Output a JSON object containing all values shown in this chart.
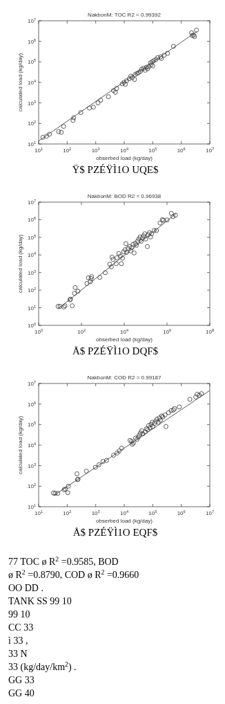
{
  "chart_data": [
    {
      "type": "scatter",
      "title": "NakbonM: TOC R2 = 0.99392",
      "xlabel": "obserbed load (kg/day)",
      "ylabel": "calculated load (kg/day)",
      "annotations": [
        "Ÿ$ PZÉŸÌ1O UQE$"
      ],
      "log": "xy",
      "marker": "circle",
      "xlim": [
        10,
        10000000
      ],
      "ylim": [
        10,
        10000000
      ],
      "xticks": [
        {
          "value": 10,
          "label": "10$^{1}$"
        },
        {
          "value": 100,
          "label": "10$^{2}$"
        },
        {
          "value": 1000,
          "label": "10$^{3}$"
        },
        {
          "value": 10000,
          "label": "10$^{4}$"
        },
        {
          "value": 100000,
          "label": "10$^{5}$"
        },
        {
          "value": 1000000,
          "label": "10$^{6}$"
        },
        {
          "value": 10000000,
          "label": "10$^{7}$"
        }
      ],
      "yticks": [
        {
          "value": 10,
          "label": "10$^{1}$"
        },
        {
          "value": 100,
          "label": "10$^{2}$"
        },
        {
          "value": 1000,
          "label": "10$^{3}$"
        },
        {
          "value": 10000,
          "label": "10$^{4}$"
        },
        {
          "value": 100000,
          "label": "10$^{5}$"
        },
        {
          "value": 1000000,
          "label": "10$^{6}$"
        },
        {
          "value": 10000000,
          "label": "10$^{7}$"
        }
      ],
      "series": [
        {
          "type": "scatter",
          "color": "#333333",
          "x": [
            14,
            19,
            24,
            50,
            62,
            75,
            160,
            170,
            300,
            600,
            830,
            1200,
            1500,
            2800,
            4200,
            4900,
            5400,
            8500,
            9800,
            11000,
            12000,
            15000,
            17000,
            19000,
            23000,
            24000,
            28000,
            32000,
            37000,
            41000,
            48000,
            54000,
            60000,
            66000,
            72000,
            83000,
            87000,
            96000,
            100000,
            110000,
            130000,
            150000,
            190000,
            200000,
            250000,
            330000,
            530000,
            2300000,
            2700000,
            2900000,
            3400000,
            2400000
          ],
          "values": [
            21,
            24,
            30,
            40,
            37,
            72,
            140,
            190,
            340,
            560,
            620,
            1000,
            1350,
            2000,
            4000,
            3300,
            5100,
            8500,
            10000,
            8100,
            12000,
            15000,
            20000,
            17000,
            14000,
            24000,
            27000,
            30000,
            34000,
            44000,
            49000,
            39000,
            55000,
            46000,
            58000,
            89000,
            71000,
            100000,
            63000,
            115000,
            130000,
            160000,
            175000,
            145000,
            210000,
            260000,
            570000,
            2600000,
            2000000,
            1700000,
            3500000,
            1900000
          ]
        },
        {
          "type": "line",
          "color": "#444444",
          "marker": "none",
          "x": [
            10,
            3500000
          ],
          "values": [
            14,
            3000000
          ]
        }
      ]
    },
    {
      "type": "scatter",
      "title": "NakbonM: BOD R2 = 0.96938",
      "xlabel": "obserbed load (kg/day)",
      "ylabel": "calculated load (kg/day)",
      "annotations": [
        "Å$ PZÉŸÌ1O DQF$"
      ],
      "log": "xy",
      "marker": "circle",
      "xlim": [
        1,
        100000000
      ],
      "ylim": [
        1,
        10000000
      ],
      "xticks": [
        {
          "value": 1,
          "label": "10$^{0}$"
        },
        {
          "value": 100,
          "label": "10$^{2}$"
        },
        {
          "value": 10000,
          "label": "10$^{4}$"
        },
        {
          "value": 1000000,
          "label": "10$^{6}$"
        },
        {
          "value": 100000000,
          "label": "10$^{8}$"
        }
      ],
      "yticks": [
        {
          "value": 1,
          "label": "10$^{0}$"
        },
        {
          "value": 10,
          "label": "10$^{1}$"
        },
        {
          "value": 100,
          "label": "10$^{2}$"
        },
        {
          "value": 1000,
          "label": "10$^{3}$"
        },
        {
          "value": 10000,
          "label": "10$^{4}$"
        },
        {
          "value": 100000,
          "label": "10$^{5}$"
        },
        {
          "value": 1000000,
          "label": "10$^{6}$"
        },
        {
          "value": 10000000,
          "label": "10$^{7}$"
        }
      ],
      "series": [
        {
          "type": "scatter",
          "color": "#333333",
          "x": [
            8.1,
            10,
            15,
            17,
            29,
            31,
            37,
            51,
            47,
            69,
            180,
            210,
            280,
            300,
            260,
            720,
            1300,
            2100,
            2500,
            2700,
            3000,
            4200,
            4600,
            5600,
            6600,
            7300,
            8300,
            9400,
            11000,
            12000,
            13000,
            15000,
            18000,
            20000,
            23000,
            26000,
            29000,
            33000,
            37000,
            42000,
            48000,
            55000,
            62000,
            70000,
            80000,
            91000,
            100000,
            120000,
            130000,
            150000,
            170000,
            190000,
            250000,
            320000,
            470000,
            600000,
            680000,
            1000000,
            1600000,
            1900000,
            2500000
          ],
          "values": [
            12,
            12,
            11,
            13,
            28,
            31,
            13,
            140,
            66,
            87,
            240,
            500,
            460,
            580,
            300,
            530,
            980,
            3000,
            2100,
            7500,
            5600,
            3200,
            6900,
            12000,
            8600,
            3200,
            6500,
            15000,
            20000,
            44000,
            14000,
            23000,
            30000,
            17000,
            26000,
            40000,
            13000,
            46000,
            35000,
            60000,
            80000,
            105000,
            60000,
            92000,
            120000,
            160000,
            80000,
            30000,
            140000,
            185000,
            105000,
            160000,
            245000,
            245000,
            650000,
            1000000,
            930000,
            980000,
            2300000,
            1500000,
            1800000
          ]
        },
        {
          "type": "line",
          "color": "#444444",
          "marker": "none",
          "x": [
            8,
            2700000
          ],
          "values": [
            8.5,
            2300000
          ]
        }
      ]
    },
    {
      "type": "scatter",
      "title": "NakbonM: COD R2 = 0.99187",
      "xlabel": "obserbed load (kg/day)",
      "ylabel": "calculated load (kg/day)",
      "annotations": [
        "Å$ PZÉŸÌ1O EQF$"
      ],
      "log": "xy",
      "marker": "circle",
      "xlim": [
        10,
        10000000
      ],
      "ylim": [
        10,
        10000000
      ],
      "xticks": [
        {
          "value": 10,
          "label": "10$^{1}$"
        },
        {
          "value": 100,
          "label": "10$^{2}$"
        },
        {
          "value": 1000,
          "label": "10$^{3}$"
        },
        {
          "value": 10000,
          "label": "10$^{4}$"
        },
        {
          "value": 100000,
          "label": "10$^{5}$"
        },
        {
          "value": 1000000,
          "label": "10$^{6}$"
        },
        {
          "value": 10000000,
          "label": "10$^{7}$"
        }
      ],
      "yticks": [
        {
          "value": 10,
          "label": "10$^{1}$"
        },
        {
          "value": 100,
          "label": "10$^{2}$"
        },
        {
          "value": 1000,
          "label": "10$^{3}$"
        },
        {
          "value": 10000,
          "label": "10$^{4}$"
        },
        {
          "value": 100000,
          "label": "10$^{5}$"
        },
        {
          "value": 1000000,
          "label": "10$^{6}$"
        },
        {
          "value": 10000000,
          "label": "10$^{7}$"
        }
      ],
      "series": [
        {
          "type": "scatter",
          "color": "#333333",
          "x": [
            33,
            38,
            47,
            78,
            86,
            110,
            105,
            220,
            230,
            240,
            470,
            970,
            1300,
            1800,
            2400,
            4200,
            5600,
            6700,
            8100,
            16000,
            18000,
            19000,
            21000,
            25000,
            28000,
            31000,
            34000,
            37000,
            41000,
            45000,
            54000,
            60000,
            66000,
            72000,
            80000,
            87000,
            96000,
            100000,
            115000,
            127000,
            140000,
            155000,
            170000,
            186000,
            205000,
            225000,
            270000,
            290000,
            360000,
            440000,
            530000,
            580000,
            850000,
            2000000,
            3200000,
            3600000,
            4300000,
            5100000
          ],
          "values": [
            47,
            45,
            45,
            67,
            72,
            100,
            48,
            400,
            210,
            220,
            540,
            830,
            1100,
            1600,
            1800,
            3200,
            4100,
            5200,
            7100,
            17000,
            15000,
            11000,
            12500,
            22000,
            19000,
            24500,
            31000,
            39000,
            50000,
            35000,
            44000,
            63000,
            56000,
            91000,
            71000,
            102000,
            130000,
            80000,
            115000,
            145000,
            185000,
            130000,
            210000,
            163000,
            263000,
            234000,
            295000,
            80000,
            380000,
            480000,
            515000,
            600000,
            720000,
            1700000,
            2200000,
            3000000,
            2700000,
            3200000
          ]
        },
        {
          "type": "line",
          "color": "#444444",
          "marker": "none",
          "x": [
            33,
            10000000
          ],
          "values": [
            34,
            4600000
          ]
        }
      ]
    },
    {
      "type": "other",
      "annotations": [
        "77 TOC ø R$^{2}$ =0.9585, BOD",
        "ø R$^{2}$ =0.8790, COD ø R$^{2}$ =0.9660",
        "OO DD .",
        "TANK SS 99 10",
        "99 10",
        "CC 33",
        "ì 33 ,",
        "33 N",
        "33 (kg/day/km$^{2}$) .",
        "GG 33",
        "GG 40"
      ]
    }
  ]
}
